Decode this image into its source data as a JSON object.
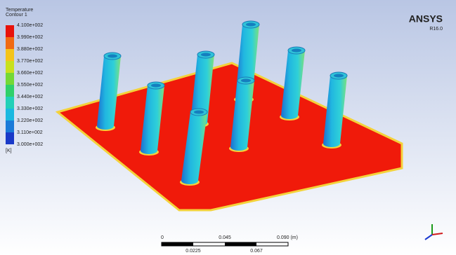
{
  "legend": {
    "title": "Temperature",
    "subtitle": "Contour 1",
    "labels": [
      "4.100e+002",
      "3.990e+002",
      "3.880e+002",
      "3.770e+002",
      "3.660e+002",
      "3.550e+002",
      "3.440e+002",
      "3.330e+002",
      "3.220e+002",
      "3.110e+002",
      "3.000e+002"
    ],
    "unit": "[K]"
  },
  "logo": {
    "name": "ANSYS",
    "version": "R16.0"
  },
  "scale_bar": {
    "top_labels": [
      "0",
      "0.045",
      "0.090 (m)"
    ],
    "bottom_labels": [
      "0.0225",
      "0.067"
    ]
  }
}
